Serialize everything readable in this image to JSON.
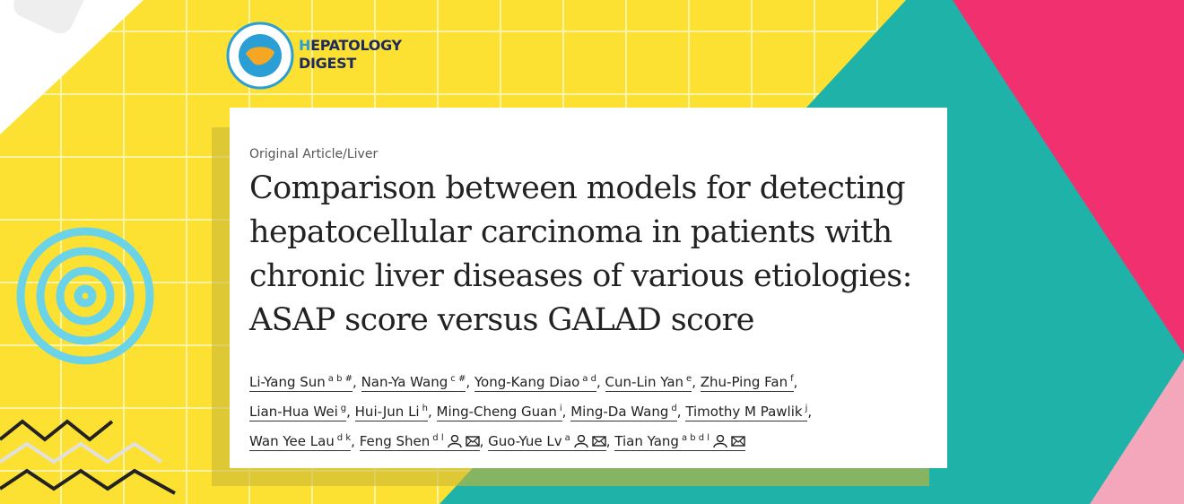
{
  "logo": {
    "line1": "HEPATOLOGY",
    "line2": "DIGEST",
    "badge": "HEPATOLOGY DIGEST"
  },
  "section": "Original Article/Liver",
  "title": {
    "lines": [
      "Comparison between models for detecting",
      "hepatocellular carcinoma in patients with",
      "chronic liver diseases of various etiologies:",
      "ASAP score versus GALAD score"
    ]
  },
  "separator": ",",
  "authors": {
    "lines": [
      [
        {
          "name": "Li-Yang Sun",
          "affil": "a b #"
        },
        {
          "name": "Nan-Ya Wang",
          "affil": "c #"
        },
        {
          "name": "Yong-Kang Diao",
          "affil": "a d"
        },
        {
          "name": "Cun-Lin Yan",
          "affil": "e"
        },
        {
          "name": "Zhu-Ping Fan",
          "affil": "f"
        }
      ],
      [
        {
          "name": "Lian-Hua Wei",
          "affil": "g"
        },
        {
          "name": "Hui-Jun Li",
          "affil": "h"
        },
        {
          "name": "Ming-Cheng Guan",
          "affil": "i"
        },
        {
          "name": "Ming-Da Wang",
          "affil": "d"
        },
        {
          "name": "Timothy M Pawlik",
          "affil": "j"
        }
      ],
      [
        {
          "name": "Wan Yee Lau",
          "affil": "d k"
        },
        {
          "name": "Feng Shen",
          "affil": "d l",
          "corresponding": true
        },
        {
          "name": "Guo-Yue Lv",
          "affil": "a",
          "corresponding": true
        },
        {
          "name": "Tian Yang",
          "affil": "a b d l",
          "corresponding": true
        }
      ]
    ]
  }
}
